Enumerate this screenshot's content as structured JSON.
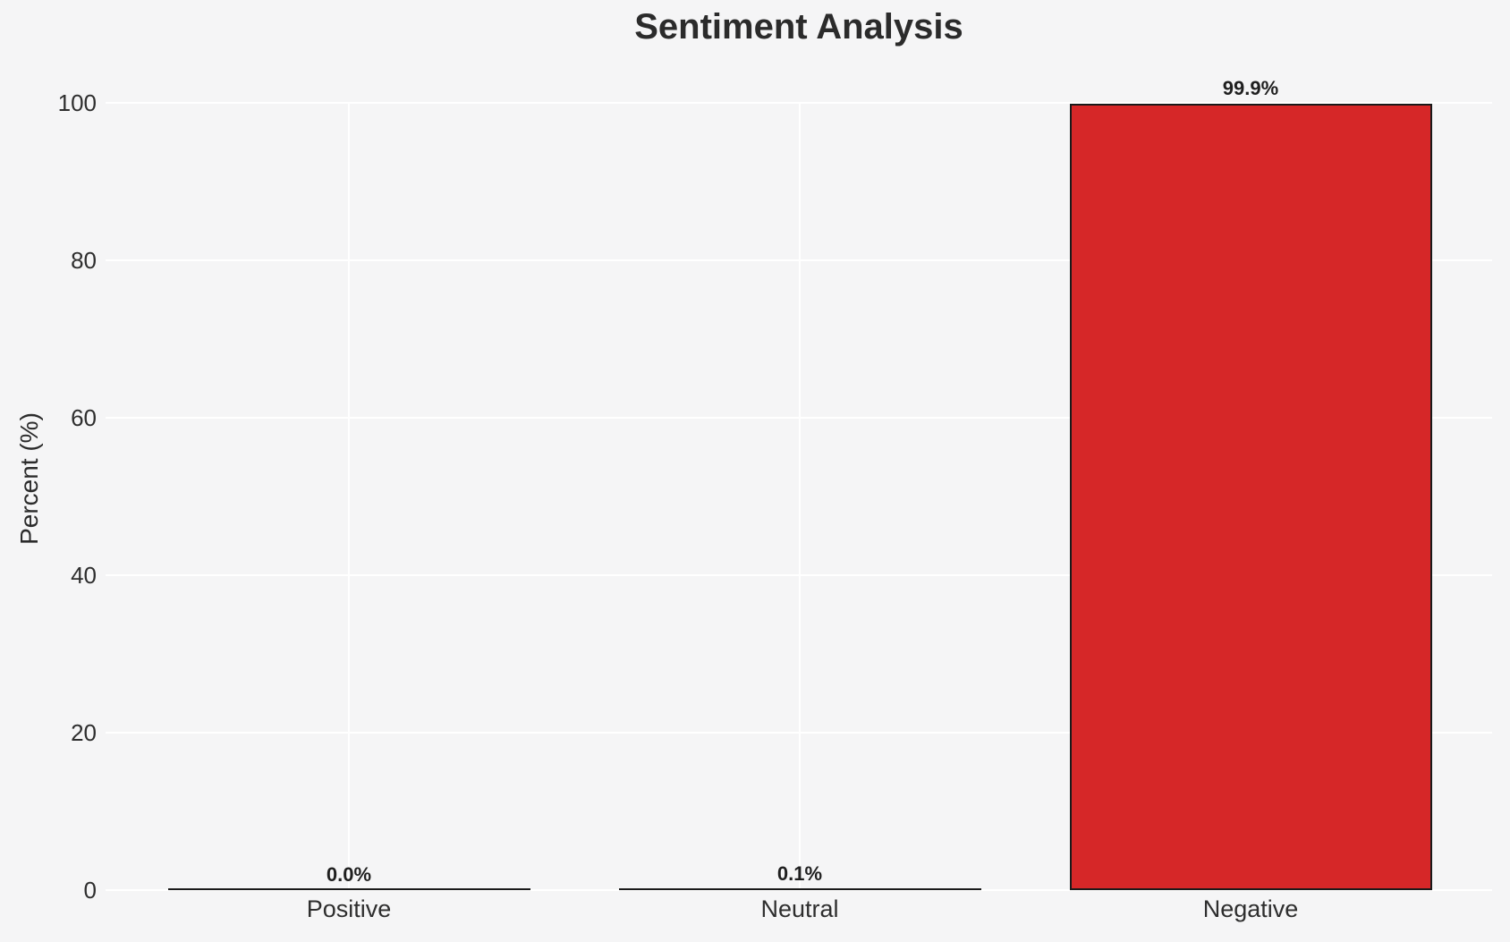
{
  "chart_data": {
    "type": "bar",
    "title": "Sentiment Analysis",
    "xlabel": "",
    "ylabel": "Percent (%)",
    "categories": [
      "Positive",
      "Neutral",
      "Negative"
    ],
    "values": [
      0.0,
      0.1,
      99.9
    ],
    "value_labels": [
      "0.0%",
      "0.1%",
      "99.9%"
    ],
    "ytick_labels": [
      "0",
      "20",
      "40",
      "60",
      "80",
      "100"
    ],
    "yticks": [
      0,
      20,
      40,
      60,
      80,
      100
    ],
    "ylim": [
      0,
      100
    ],
    "grid": "on",
    "legend": "none",
    "colors": {
      "bar_fills": [
        null,
        null,
        "#d62728"
      ],
      "bar_edge": "#1a1a1a",
      "grid": "#ffffff",
      "background": "#f5f5f6",
      "text": "#2b2b2b"
    }
  }
}
